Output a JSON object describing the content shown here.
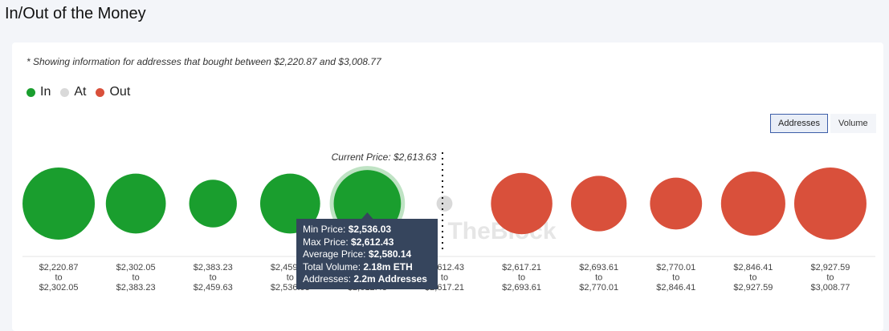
{
  "page": {
    "title": "In/Out of the Money"
  },
  "note": "* Showing information for addresses that bought between $2,220.87 and $3,008.77",
  "legend": [
    {
      "label": "In",
      "color": "#1a9e2e"
    },
    {
      "label": "At",
      "color": "#d9d9d9"
    },
    {
      "label": "Out",
      "color": "#d9503b"
    }
  ],
  "toggle": {
    "addresses_label": "Addresses",
    "volume_label": "Volume",
    "selected": "Addresses"
  },
  "watermark": "TheBlock",
  "chart_data": {
    "type": "bubble",
    "metric": "addresses",
    "current_price_label": "Current Price: $2,613.63",
    "current_price": 2613.63,
    "bins": [
      {
        "from": "$2,220.87",
        "to_word": "to",
        "to": "$2,302.05",
        "status": "in",
        "size": 1.0
      },
      {
        "from": "$2,302.05",
        "to_word": "to",
        "to": "$2,383.23",
        "status": "in",
        "size": 0.83
      },
      {
        "from": "$2,383.23",
        "to_word": "to",
        "to": "$2,459.63",
        "status": "in",
        "size": 0.66
      },
      {
        "from": "$2,459.63",
        "to_word": "to",
        "to": "$2,536.03",
        "status": "in",
        "size": 0.83
      },
      {
        "from": "$2,536.03",
        "to_word": "to",
        "to": "$2,612.43",
        "status": "in",
        "size": 0.93,
        "highlighted": true
      },
      {
        "from": "$2,612.43",
        "to_word": "to",
        "to": "$2,617.21",
        "status": "at",
        "size": 0.22
      },
      {
        "from": "$2,617.21",
        "to_word": "to",
        "to": "$2,693.61",
        "status": "out",
        "size": 0.85
      },
      {
        "from": "$2,693.61",
        "to_word": "to",
        "to": "$2,770.01",
        "status": "out",
        "size": 0.77
      },
      {
        "from": "$2,770.01",
        "to_word": "to",
        "to": "$2,846.41",
        "status": "out",
        "size": 0.72
      },
      {
        "from": "$2,846.41",
        "to_word": "to",
        "to": "$2,927.59",
        "status": "out",
        "size": 0.89
      },
      {
        "from": "$2,927.59",
        "to_word": "to",
        "to": "$3,008.77",
        "status": "out",
        "size": 1.0
      }
    ],
    "tooltip": {
      "lines": [
        {
          "label": "Min Price: ",
          "value": "$2,536.03"
        },
        {
          "label": "Max Price: ",
          "value": "$2,612.43"
        },
        {
          "label": "Average Price: ",
          "value": "$2,580.14"
        },
        {
          "label": "Total Volume: ",
          "value": "2.18m ETH"
        },
        {
          "label": "Addresses: ",
          "value": "2.2m Addresses"
        }
      ]
    }
  }
}
